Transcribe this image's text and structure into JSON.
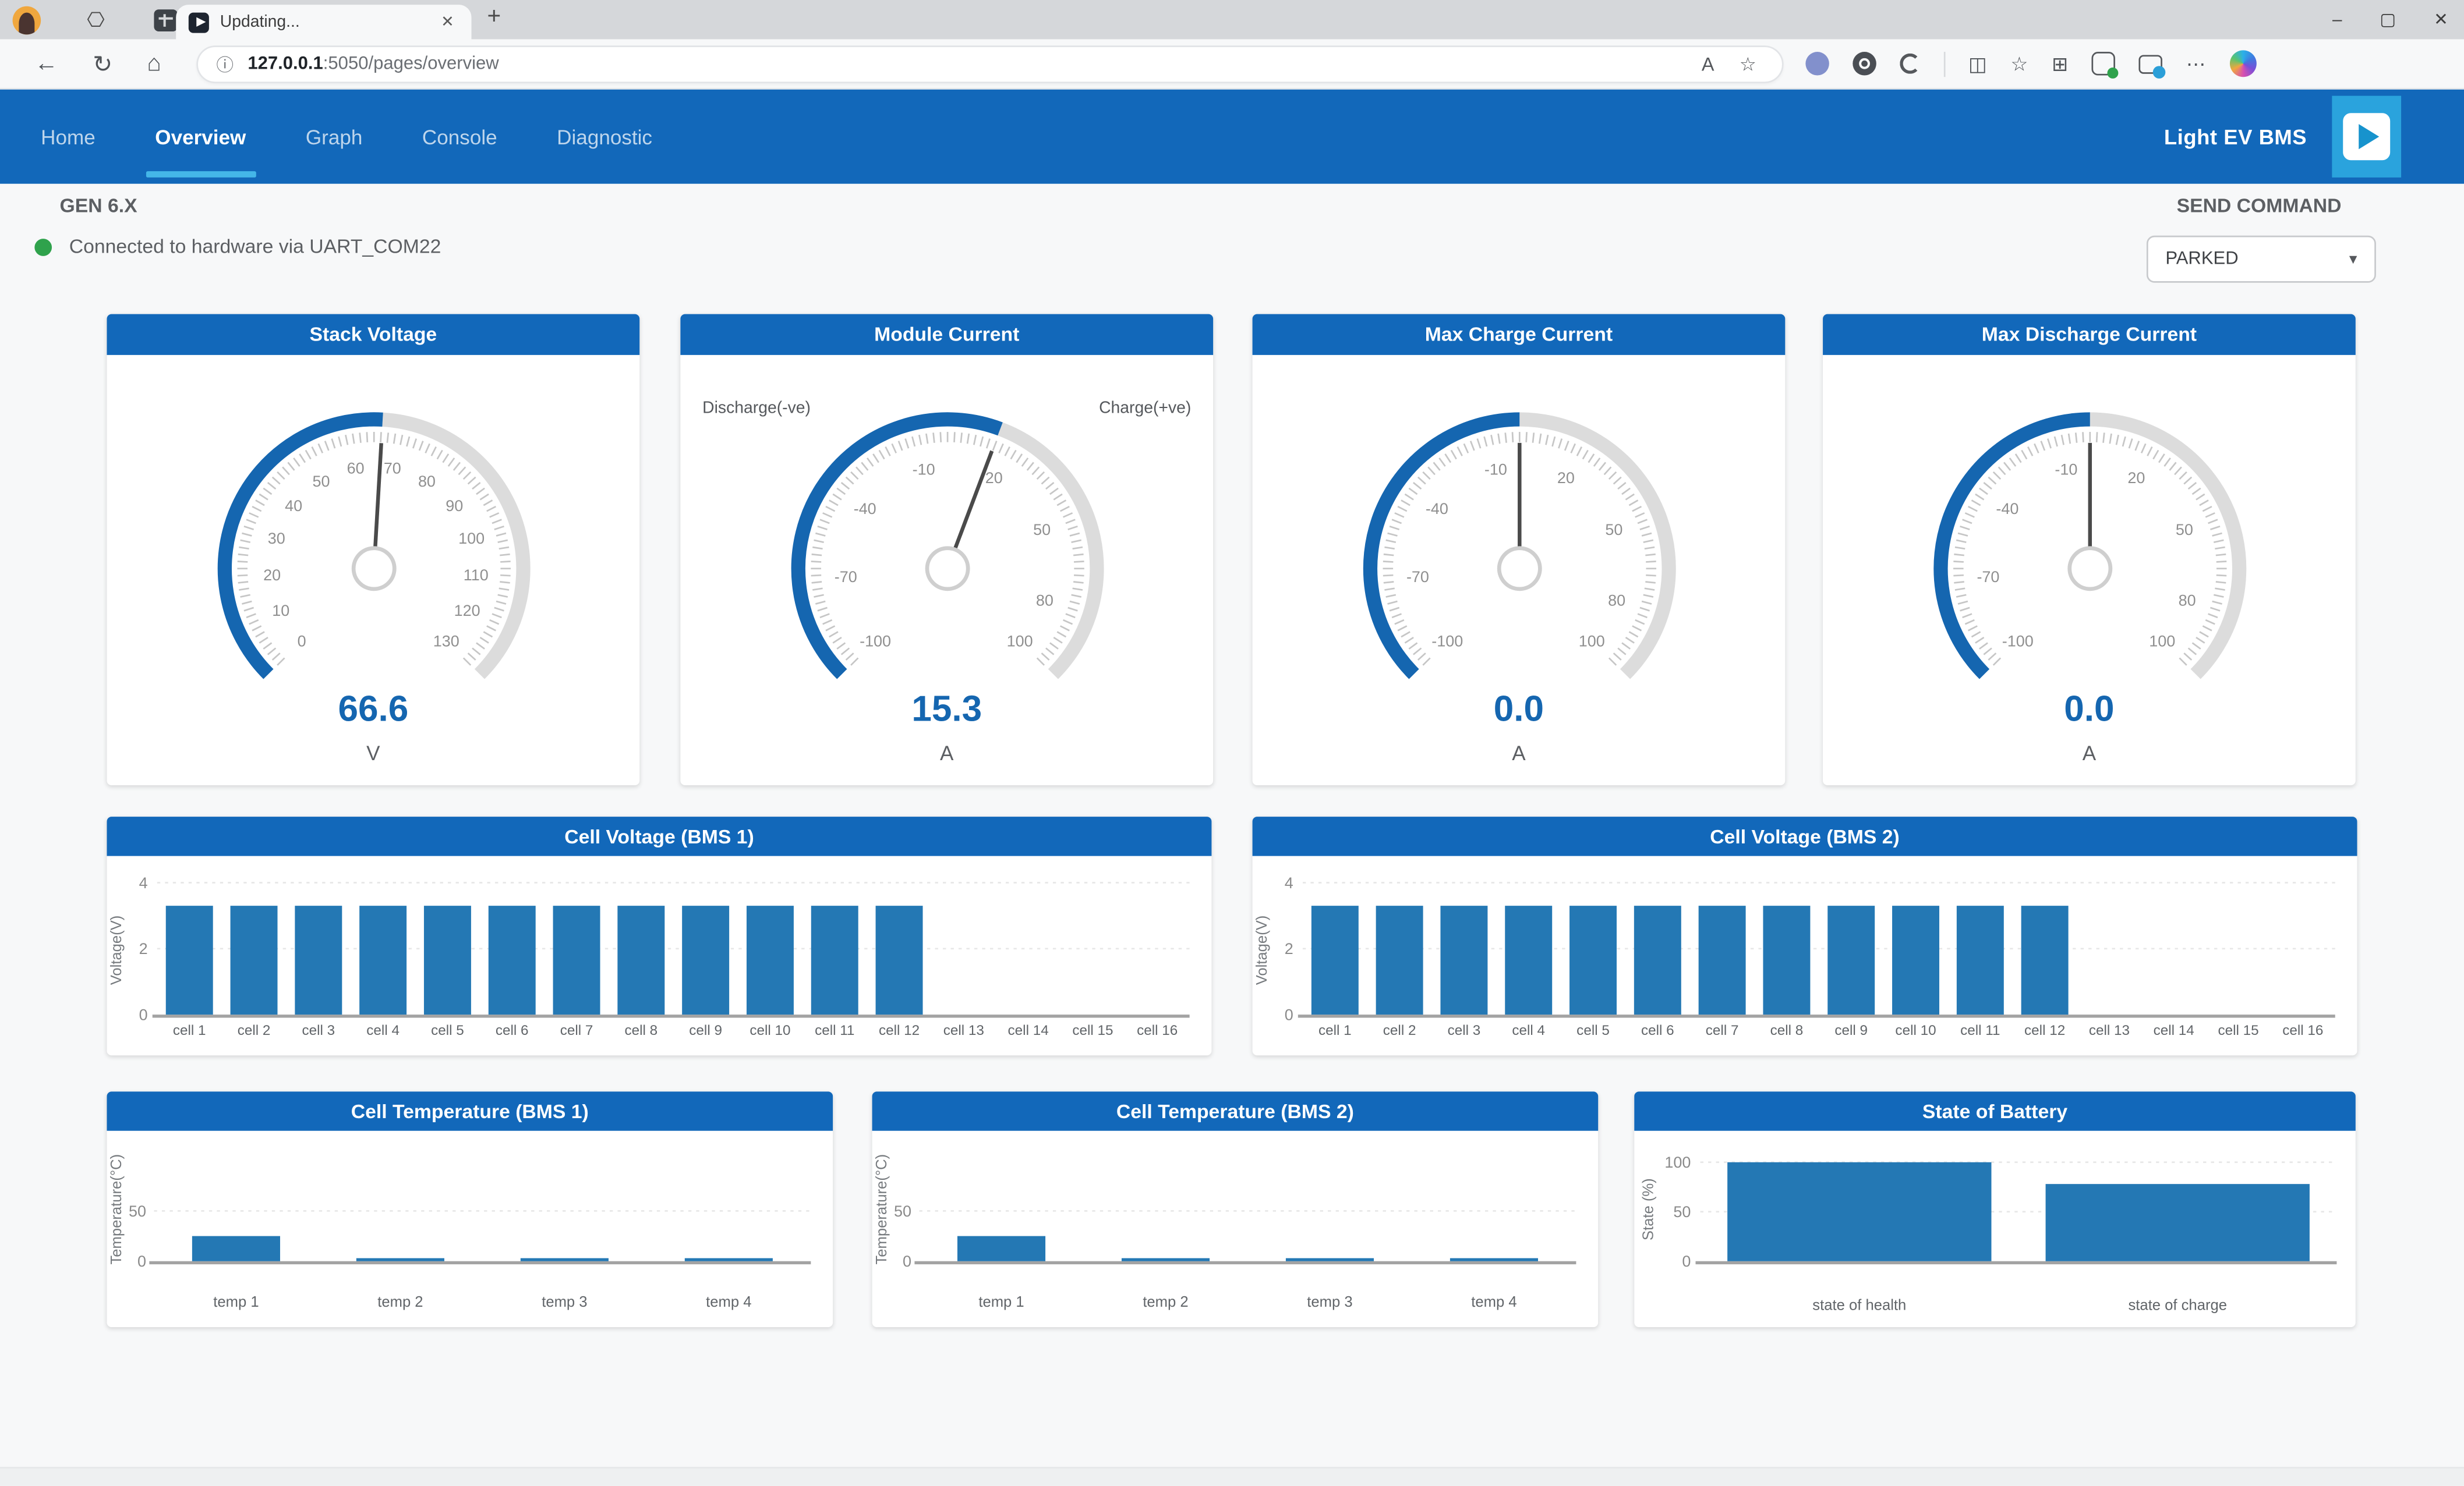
{
  "accent": {
    "navbar_blue": "#1268ba",
    "active_underline": "#44b6e8",
    "gauge_blue": "#1566b0",
    "bar_blue": "#2478b4",
    "connected_green": "#2fa24c",
    "play_button_bg": "#2aa3dd"
  },
  "browser": {
    "tab_title": "Updating...",
    "url_host": "127.0.0.1",
    "url_rest": ":5050/pages/overview",
    "icons": {
      "back": "←",
      "refresh": "↻",
      "home": "⌂",
      "info": "ⓘ",
      "text_size": "A",
      "favorite": "☆",
      "split_screen": "◫",
      "favorites_bar": "☆",
      "collections": "⊞",
      "more": "⋯",
      "new_tab": "+",
      "tab_close": "✕",
      "workspaces": "⎔",
      "minimize": "–",
      "maximize": "▢",
      "close": "✕",
      "caret": "▾"
    }
  },
  "navbar": {
    "items": [
      {
        "label": "Home",
        "active": false
      },
      {
        "label": "Overview",
        "active": true
      },
      {
        "label": "Graph",
        "active": false
      },
      {
        "label": "Console",
        "active": false
      },
      {
        "label": "Diagnostic",
        "active": false
      }
    ],
    "brand": "Light EV BMS"
  },
  "status": {
    "generation": "GEN 6.X",
    "connection": "Connected to hardware via UART_COM22"
  },
  "command": {
    "label": "SEND COMMAND",
    "selected": "PARKED"
  },
  "gauges": [
    {
      "title": "Stack Voltage",
      "value": "66.6",
      "unit": "V",
      "min": 0,
      "max": 130,
      "labels": [
        0,
        10,
        20,
        30,
        40,
        50,
        60,
        70,
        80,
        90,
        100,
        110,
        120,
        130
      ],
      "left_label": "",
      "right_label": ""
    },
    {
      "title": "Module Current",
      "value": "15.3",
      "unit": "A",
      "min": -100,
      "max": 100,
      "labels": [
        -100,
        -70,
        -40,
        -10,
        20,
        50,
        80,
        100
      ],
      "left_label": "Discharge(-ve)",
      "right_label": "Charge(+ve)"
    },
    {
      "title": "Max Charge Current",
      "value": "0.0",
      "unit": "A",
      "min": -100,
      "max": 100,
      "labels": [
        -100,
        -70,
        -40,
        -10,
        20,
        50,
        80,
        100
      ],
      "left_label": "",
      "right_label": ""
    },
    {
      "title": "Max Discharge Current",
      "value": "0.0",
      "unit": "A",
      "min": -100,
      "max": 100,
      "labels": [
        -100,
        -70,
        -40,
        -10,
        20,
        50,
        80,
        100
      ],
      "left_label": "",
      "right_label": ""
    }
  ],
  "chart_data": [
    {
      "id": "cv1",
      "type": "bar",
      "title": "Cell Voltage (BMS 1)",
      "ylabel": "Voltage(V)",
      "ylim": [
        0,
        4
      ],
      "yticks": [
        0,
        2,
        4
      ],
      "grid": [
        2,
        4
      ],
      "categories": [
        "cell 1",
        "cell 2",
        "cell 3",
        "cell 4",
        "cell 5",
        "cell 6",
        "cell 7",
        "cell 8",
        "cell 9",
        "cell 10",
        "cell 11",
        "cell 12",
        "cell 13",
        "cell 14",
        "cell 15",
        "cell 16"
      ],
      "values": [
        3.3,
        3.3,
        3.3,
        3.3,
        3.3,
        3.3,
        3.3,
        3.3,
        3.3,
        3.3,
        3.3,
        3.3,
        0,
        0,
        0,
        0
      ]
    },
    {
      "id": "cv2",
      "type": "bar",
      "title": "Cell Voltage (BMS 2)",
      "ylabel": "Voltage(V)",
      "ylim": [
        0,
        4
      ],
      "yticks": [
        0,
        2,
        4
      ],
      "grid": [
        2,
        4
      ],
      "categories": [
        "cell 1",
        "cell 2",
        "cell 3",
        "cell 4",
        "cell 5",
        "cell 6",
        "cell 7",
        "cell 8",
        "cell 9",
        "cell 10",
        "cell 11",
        "cell 12",
        "cell 13",
        "cell 14",
        "cell 15",
        "cell 16"
      ],
      "values": [
        3.3,
        3.3,
        3.3,
        3.3,
        3.3,
        3.3,
        3.3,
        3.3,
        3.3,
        3.3,
        3.3,
        3.3,
        0,
        0,
        0,
        0
      ]
    },
    {
      "id": "ct1",
      "type": "bar",
      "title": "Cell Temperature (BMS 1)",
      "ylabel": "Temperature(°C)",
      "ylim": [
        0,
        105
      ],
      "yticks": [
        0,
        50
      ],
      "grid": [
        50
      ],
      "categories": [
        "temp 1",
        "temp 2",
        "temp 3",
        "temp 4"
      ],
      "values": [
        25,
        3,
        3,
        3
      ]
    },
    {
      "id": "ct2",
      "type": "bar",
      "title": "Cell Temperature (BMS 2)",
      "ylabel": "Temperature(°C)",
      "ylim": [
        0,
        105
      ],
      "yticks": [
        0,
        50
      ],
      "grid": [
        50
      ],
      "categories": [
        "temp 1",
        "temp 2",
        "temp 3",
        "temp 4"
      ],
      "values": [
        25,
        3,
        3,
        3
      ]
    },
    {
      "id": "soc",
      "type": "bar",
      "title": "State of Battery",
      "ylabel": "State (%)",
      "ylim": [
        0,
        110
      ],
      "yticks": [
        0,
        50,
        100
      ],
      "grid": [
        50,
        100
      ],
      "categories": [
        "state of health",
        "state of charge"
      ],
      "values": [
        100,
        78
      ]
    }
  ]
}
